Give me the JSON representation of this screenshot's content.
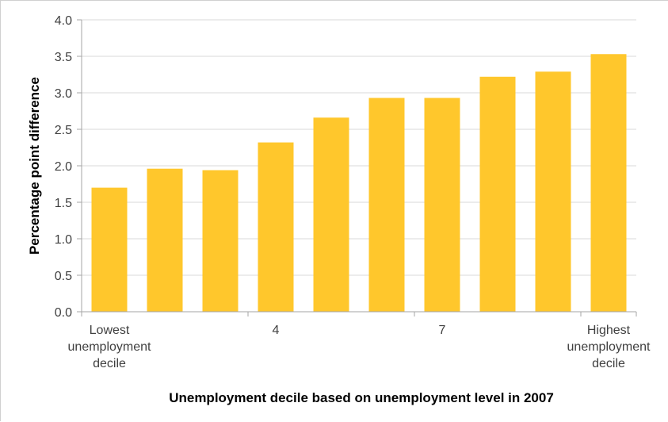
{
  "chart_data": {
    "type": "bar",
    "categories": [
      [
        "Lowest",
        "unemployment",
        "decile"
      ],
      [
        ""
      ],
      [
        ""
      ],
      [
        "4"
      ],
      [
        ""
      ],
      [
        ""
      ],
      [
        "7"
      ],
      [
        ""
      ],
      [
        ""
      ],
      [
        "Highest",
        "unemployment",
        "decile"
      ]
    ],
    "values": [
      1.7,
      1.96,
      1.94,
      2.32,
      2.66,
      2.93,
      2.93,
      3.22,
      3.29,
      3.53
    ],
    "title": "",
    "xlabel": "Unemployment  decile based on unemployment  level in 2007",
    "ylabel": "Percentage point difference",
    "ylim": [
      0,
      4.0
    ],
    "yticks": [
      "0.0",
      "0.5",
      "1.0",
      "1.5",
      "2.0",
      "2.5",
      "3.0",
      "3.5",
      "4.0"
    ],
    "grid": true,
    "legend": "none",
    "colors": {
      "bar": "#FFC72C",
      "grid": "#d9d9d9",
      "axis": "#a6a6a6"
    }
  }
}
